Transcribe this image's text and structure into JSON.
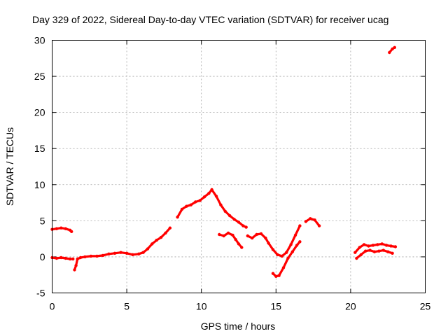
{
  "chart_data": {
    "type": "line",
    "title": "Day 329 of 2022, Sidereal Day-to-day VTEC variation (SDTVAR) for receiver ucag",
    "xlabel": "GPS time / hours",
    "ylabel": "SDTVAR / TECUs",
    "xlim": [
      0,
      25
    ],
    "ylim": [
      -5,
      30
    ],
    "xticks": [
      0,
      5,
      10,
      15,
      20,
      25
    ],
    "yticks": [
      -5,
      0,
      5,
      10,
      15,
      20,
      25,
      30
    ],
    "grid": true,
    "legend": "none",
    "color": "#ff0000",
    "series": [
      {
        "name": "segment-1",
        "x": [
          0.0,
          0.3,
          0.6,
          0.9,
          1.2,
          1.3
        ],
        "y": [
          3.8,
          3.9,
          4.0,
          3.9,
          3.7,
          3.5
        ]
      },
      {
        "name": "segment-2",
        "x": [
          0.0,
          0.3,
          0.6,
          0.9,
          1.2,
          1.4
        ],
        "y": [
          -0.1,
          -0.2,
          -0.1,
          -0.2,
          -0.3,
          -0.3
        ]
      },
      {
        "name": "segment-3",
        "x": [
          1.5,
          1.6,
          1.7,
          1.9,
          2.2,
          2.6,
          3.0,
          3.4,
          3.8,
          4.2,
          4.6,
          5.0,
          5.4,
          5.8,
          6.1,
          6.4,
          6.7,
          7.0,
          7.3,
          7.6,
          7.9
        ],
        "y": [
          -1.8,
          -1.2,
          -0.3,
          -0.1,
          0.0,
          0.1,
          0.1,
          0.2,
          0.4,
          0.5,
          0.6,
          0.5,
          0.3,
          0.4,
          0.6,
          1.1,
          1.8,
          2.3,
          2.7,
          3.3,
          4.0
        ]
      },
      {
        "name": "segment-4",
        "x": [
          8.4,
          8.7,
          9.0,
          9.3,
          9.6,
          9.9,
          10.2,
          10.5,
          10.7
        ],
        "y": [
          5.5,
          6.6,
          7.0,
          7.2,
          7.6,
          7.8,
          8.3,
          8.8,
          9.3
        ]
      },
      {
        "name": "segment-5",
        "x": [
          10.7,
          11.0,
          11.3,
          11.6,
          11.9,
          12.2,
          12.5,
          12.8,
          13.0
        ],
        "y": [
          9.3,
          8.4,
          7.2,
          6.3,
          5.7,
          5.2,
          4.8,
          4.3,
          4.1
        ]
      },
      {
        "name": "segment-6",
        "x": [
          11.2,
          11.5,
          11.8,
          12.1,
          12.3,
          12.5,
          12.7
        ],
        "y": [
          3.1,
          2.9,
          3.3,
          3.0,
          2.4,
          1.8,
          1.3
        ]
      },
      {
        "name": "segment-7",
        "x": [
          13.1,
          13.4,
          13.7,
          14.0,
          14.3,
          14.5,
          14.8,
          15.1,
          15.4,
          15.7,
          16.0,
          16.3,
          16.6
        ],
        "y": [
          2.9,
          2.6,
          3.1,
          3.2,
          2.6,
          1.9,
          1.0,
          0.3,
          0.1,
          0.6,
          1.7,
          3.0,
          4.3
        ]
      },
      {
        "name": "segment-8",
        "x": [
          14.8,
          15.0,
          15.2,
          15.5,
          15.8,
          16.1,
          16.4,
          16.6
        ],
        "y": [
          -2.3,
          -2.7,
          -2.6,
          -1.5,
          -0.2,
          0.7,
          1.6,
          2.1
        ]
      },
      {
        "name": "segment-9",
        "x": [
          17.0,
          17.3,
          17.6,
          17.9
        ],
        "y": [
          4.9,
          5.3,
          5.1,
          4.3
        ]
      },
      {
        "name": "segment-10",
        "x": [
          20.3,
          20.6,
          20.9,
          21.2,
          21.5,
          21.8,
          22.1,
          22.4,
          22.7,
          23.0
        ],
        "y": [
          0.6,
          1.3,
          1.7,
          1.5,
          1.6,
          1.7,
          1.8,
          1.6,
          1.5,
          1.4
        ]
      },
      {
        "name": "segment-11",
        "x": [
          20.4,
          20.7,
          21.0,
          21.3,
          21.6,
          21.9,
          22.2,
          22.5,
          22.8
        ],
        "y": [
          -0.2,
          0.3,
          0.8,
          0.9,
          0.7,
          0.8,
          0.9,
          0.7,
          0.5
        ]
      },
      {
        "name": "segment-12",
        "x": [
          22.6,
          22.8,
          22.95
        ],
        "y": [
          28.3,
          28.8,
          29.0
        ]
      }
    ]
  }
}
